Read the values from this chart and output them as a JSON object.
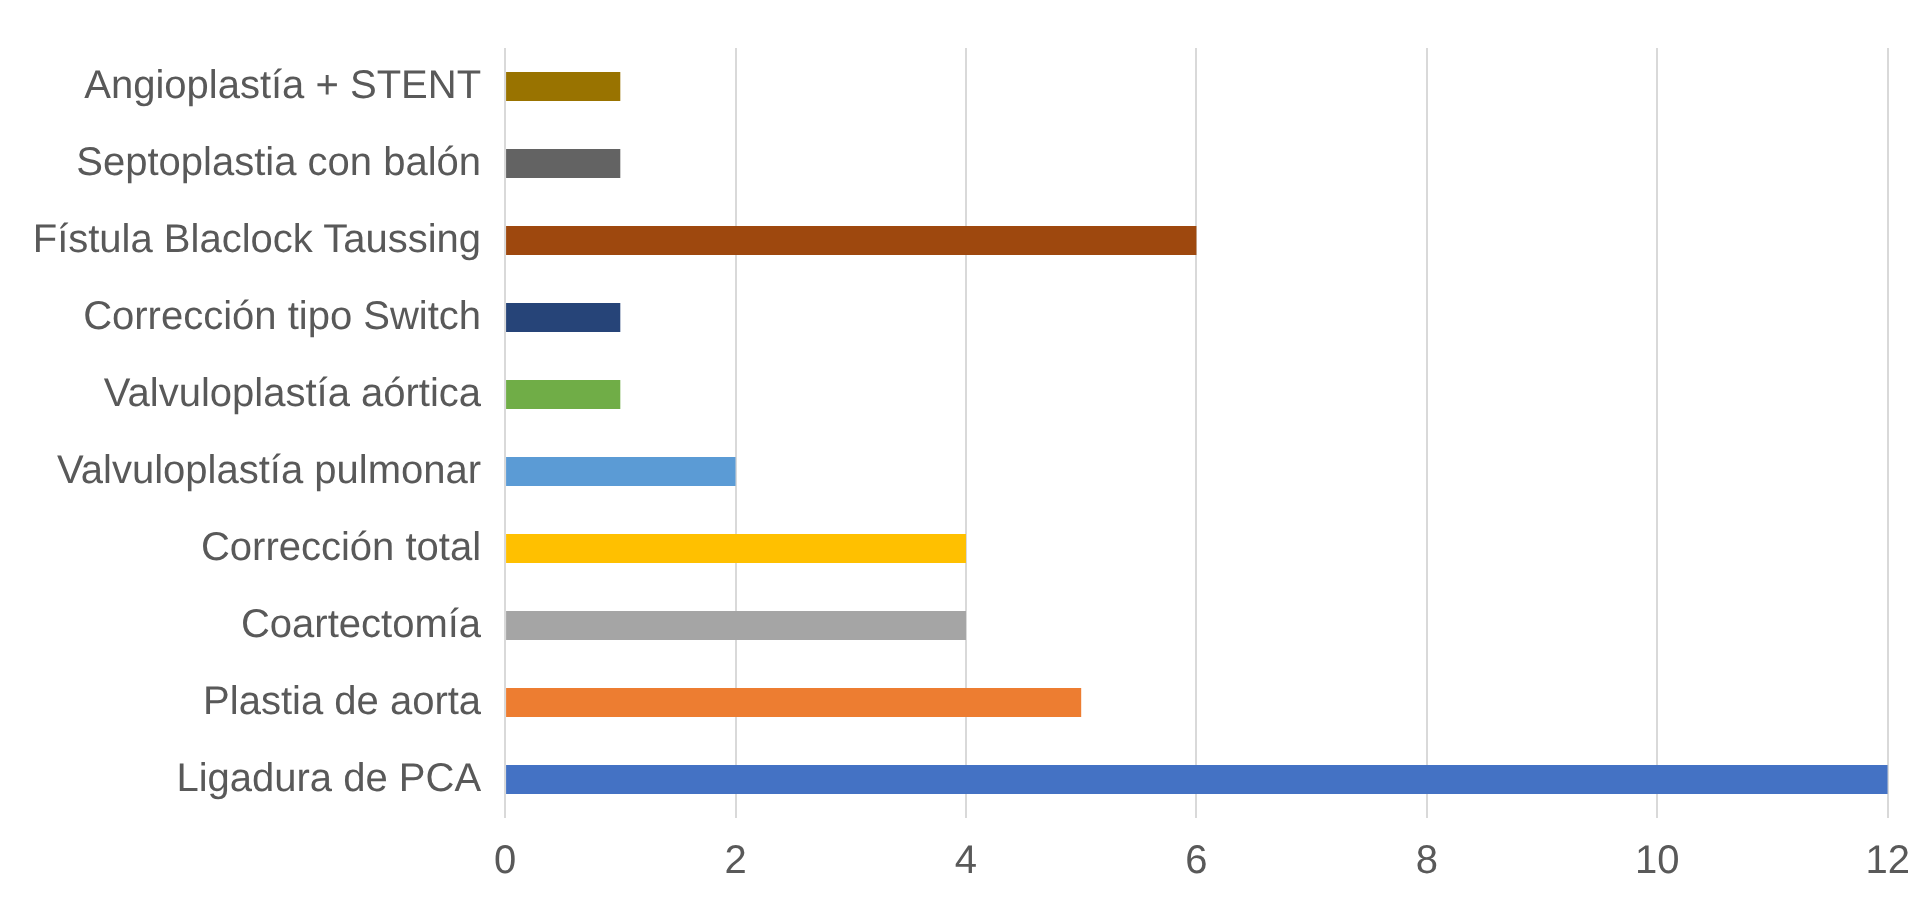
{
  "chart_data": {
    "type": "bar",
    "orientation": "horizontal",
    "categories": [
      "Angioplastía + STENT",
      "Septoplastia con balón",
      "Fístula Blaclock Taussing",
      "Corrección tipo Switch",
      "Valvuloplastía aórtica",
      "Valvuloplastía pulmonar",
      "Corrección total",
      "Coartectomía",
      "Plastia de aorta",
      "Ligadura de PCA"
    ],
    "values": [
      1,
      1,
      6,
      1,
      1,
      2,
      4,
      4,
      5,
      12
    ],
    "colors": [
      "#997300",
      "#636363",
      "#9e480e",
      "#264478",
      "#70ad47",
      "#5b9bd5",
      "#ffc000",
      "#a5a5a5",
      "#ed7d31",
      "#4472c4"
    ],
    "xlim": [
      0,
      12
    ],
    "xticks": [
      0,
      2,
      4,
      6,
      8,
      10,
      12
    ],
    "grid": "x",
    "legend": false
  }
}
